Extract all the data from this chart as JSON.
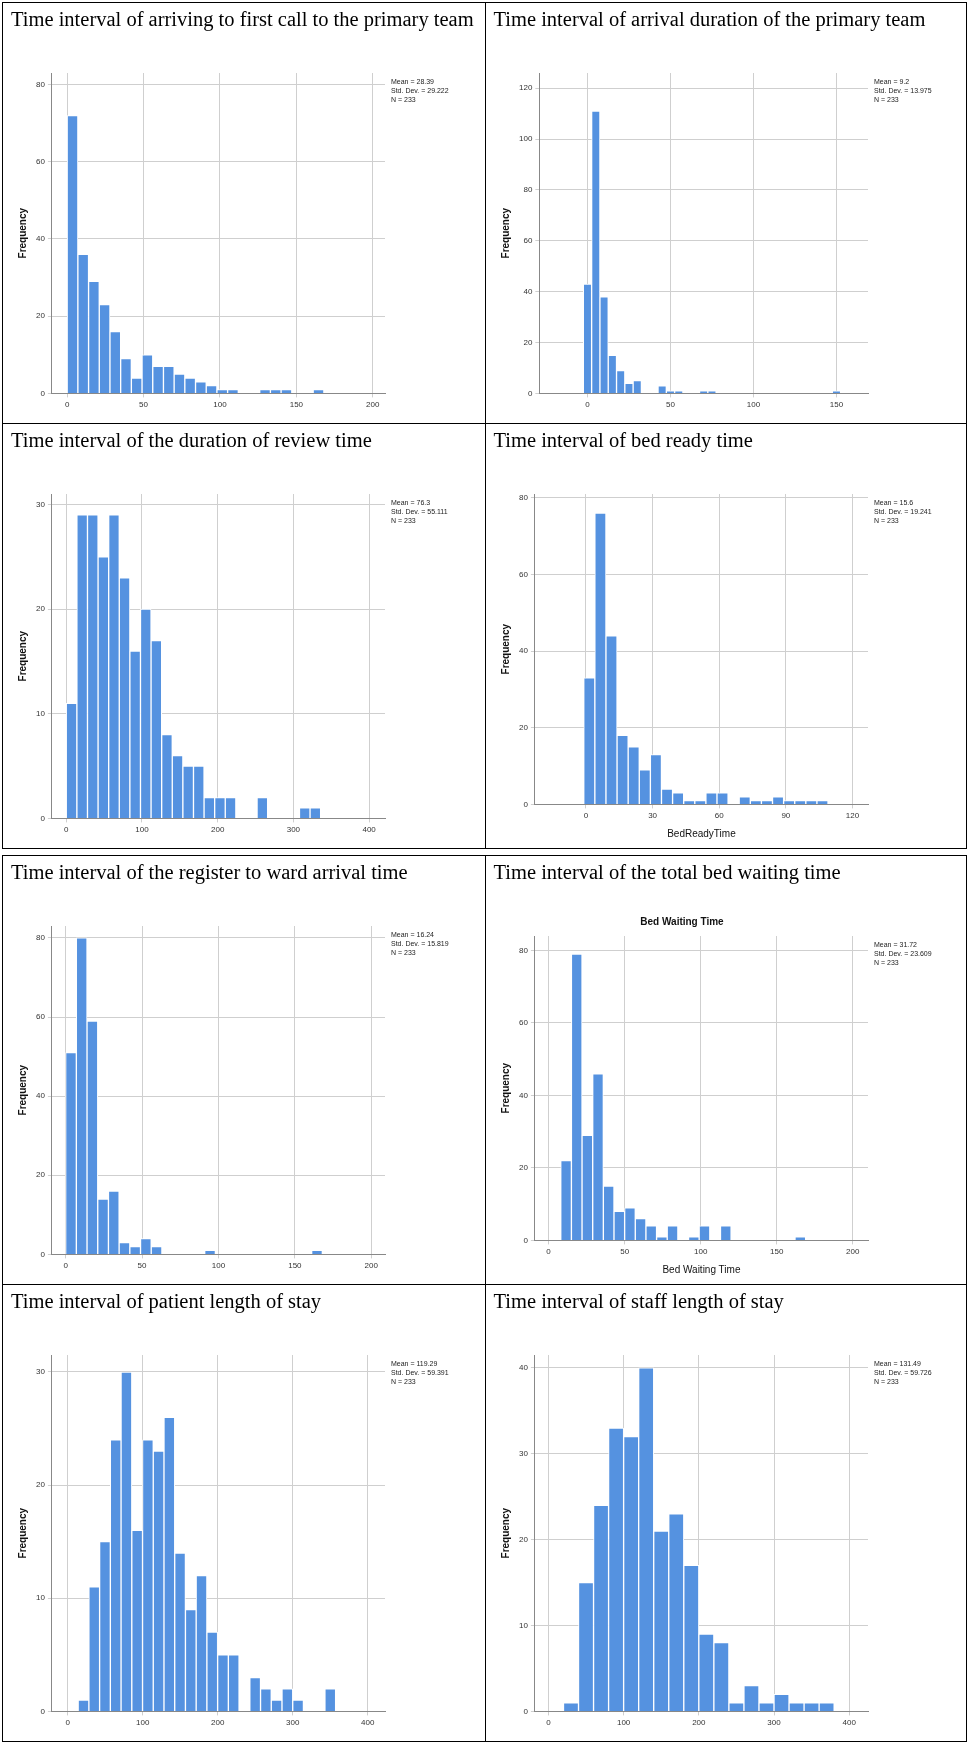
{
  "chart_data": [
    {
      "type": "histogram",
      "title": "Time interval of arriving to first call to the primary team",
      "ylabel": "Frequency",
      "color": "#5592e0",
      "grid": true,
      "bins": [
        0,
        7,
        14,
        21,
        28,
        35,
        42,
        49,
        56,
        63,
        70,
        77,
        84,
        91,
        98,
        105,
        112,
        119,
        126,
        133,
        140,
        147,
        154,
        161,
        168,
        175
      ],
      "values": [
        72,
        36,
        29,
        23,
        16,
        9,
        4,
        10,
        7,
        7,
        5,
        4,
        3,
        2,
        1,
        1,
        0,
        0,
        1,
        1,
        1,
        0,
        0,
        1,
        0
      ],
      "xlim": [
        -10,
        208
      ],
      "xticks": [
        0,
        50,
        100,
        150,
        200
      ],
      "ylim": [
        0,
        83
      ],
      "yticks": [
        0,
        20,
        40,
        60,
        80
      ],
      "annotations": [
        "Mean = 28.39",
        "Std. Dev. = 29.222",
        "N = 233"
      ]
    },
    {
      "type": "histogram",
      "title": "Time interval of arrival duration of the primary team",
      "ylabel": "Frequency",
      "color": "#5592e0",
      "grid": true,
      "bins": [
        -2.5,
        2.5,
        7.5,
        12.5,
        17.5,
        22.5,
        27.5,
        32.5,
        37.5,
        42.5,
        47.5,
        52.5,
        57.5,
        62.5,
        67.5,
        72.5,
        77.5,
        82.5,
        87.5,
        92.5,
        97.5,
        102.5,
        107.5,
        112.5,
        117.5,
        122.5,
        127.5,
        132.5,
        137.5,
        142.5,
        147.5,
        152.5
      ],
      "values": [
        43,
        111,
        38,
        15,
        9,
        4,
        5,
        0,
        0,
        3,
        1,
        1,
        0,
        0,
        1,
        1,
        0,
        0,
        0,
        0,
        0,
        0,
        0,
        0,
        0,
        0,
        0,
        0,
        0,
        0,
        1
      ],
      "xlim": [
        -29,
        169
      ],
      "xticks": [
        0,
        50,
        100,
        150
      ],
      "ylim": [
        0,
        126
      ],
      "yticks": [
        0,
        20,
        40,
        60,
        80,
        100,
        120
      ],
      "annotations": [
        "Mean = 9.2",
        "Std. Dev. = 13.975",
        "N = 233"
      ]
    },
    {
      "type": "histogram",
      "title": "Time interval of the duration of review time",
      "ylabel": "Frequency",
      "color": "#5592e0",
      "grid": true,
      "bins": [
        0,
        14,
        28,
        42,
        56,
        70,
        84,
        98,
        112,
        126,
        140,
        154,
        168,
        182,
        196,
        210,
        224,
        238,
        252,
        266,
        280,
        294,
        308,
        322,
        336
      ],
      "values": [
        11,
        29,
        29,
        25,
        29,
        23,
        16,
        20,
        17,
        8,
        6,
        5,
        5,
        2,
        2,
        2,
        0,
        0,
        2,
        0,
        0,
        0,
        1,
        1
      ],
      "xlim": [
        -19,
        421
      ],
      "xticks": [
        0,
        100,
        200,
        300,
        400
      ],
      "ylim": [
        0,
        31
      ],
      "yticks": [
        0,
        10,
        20,
        30
      ],
      "annotations": [
        "Mean = 76.3",
        "Std. Dev. = 55.111",
        "N = 233"
      ]
    },
    {
      "type": "histogram",
      "title": "Time interval of bed ready time",
      "xlabel": "BedReadyTime",
      "ylabel": "Frequency",
      "color": "#5592e0",
      "grid": true,
      "bins": [
        -1,
        4,
        9,
        14,
        19,
        24,
        29,
        34,
        39,
        44,
        49,
        54,
        59,
        64,
        69,
        74,
        79,
        84,
        89,
        94,
        99,
        104,
        109
      ],
      "values": [
        33,
        76,
        44,
        18,
        15,
        9,
        13,
        4,
        3,
        1,
        1,
        3,
        3,
        0,
        2,
        1,
        1,
        2,
        1,
        1,
        1,
        1
      ],
      "xlim": [
        -23,
        127
      ],
      "xticks": [
        0,
        30,
        60,
        90,
        120
      ],
      "ylim": [
        0,
        81
      ],
      "yticks": [
        0,
        20,
        40,
        60,
        80
      ],
      "annotations": [
        "Mean = 15.6",
        "Std. Dev. = 19.241",
        "N = 233"
      ]
    },
    {
      "type": "histogram",
      "title": "Time interval of the register to ward arrival time",
      "ylabel": "Frequency",
      "color": "#5592e0",
      "grid": true,
      "bins": [
        0,
        7,
        14,
        21,
        28,
        35,
        42,
        49,
        56,
        63,
        70,
        77,
        84,
        91,
        98,
        105,
        112,
        119,
        126,
        133,
        140,
        147,
        154,
        161,
        168
      ],
      "values": [
        51,
        80,
        59,
        14,
        16,
        3,
        2,
        4,
        2,
        0,
        0,
        0,
        0,
        1,
        0,
        0,
        0,
        0,
        0,
        0,
        0,
        0,
        0,
        1
      ],
      "xlim": [
        -9,
        209
      ],
      "xticks": [
        0,
        50,
        100,
        150,
        200
      ],
      "ylim": [
        0,
        83
      ],
      "yticks": [
        0,
        20,
        40,
        60,
        80
      ],
      "annotations": [
        "Mean = 16.24",
        "Std. Dev. = 15.819",
        "N = 233"
      ]
    },
    {
      "type": "histogram",
      "title": "Time interval of the total bed waiting time",
      "subtitle": "Bed Waiting Time",
      "xlabel": "Bed Waiting Time",
      "ylabel": "Frequency",
      "color": "#5592e0",
      "grid": true,
      "bins": [
        8,
        15,
        22,
        29,
        36,
        43,
        50,
        57,
        64,
        71,
        78,
        85,
        92,
        99,
        106,
        113,
        120,
        127,
        134,
        141,
        148,
        155,
        162,
        169
      ],
      "values": [
        22,
        79,
        29,
        46,
        15,
        8,
        9,
        6,
        4,
        1,
        4,
        0,
        1,
        4,
        0,
        4,
        0,
        0,
        0,
        0,
        0,
        0,
        1
      ],
      "xlim": [
        -9,
        210
      ],
      "xticks": [
        0,
        50,
        100,
        150,
        200
      ],
      "ylim": [
        0,
        84
      ],
      "yticks": [
        0,
        20,
        40,
        60,
        80
      ],
      "annotations": [
        "Mean = 31.72",
        "Std. Dev. = 23.609",
        "N = 233"
      ]
    },
    {
      "type": "histogram",
      "title": "Time interval of patient length of stay",
      "ylabel": "Frequency",
      "color": "#5592e0",
      "grid": true,
      "bins": [
        14,
        28.3,
        42.6,
        56.9,
        71.2,
        85.5,
        99.8,
        114.1,
        128.4,
        142.7,
        157,
        171.3,
        185.6,
        199.9,
        214.2,
        228.5,
        242.8,
        257.1,
        271.4,
        285.7,
        300,
        314.3,
        328.6,
        342.9,
        357.2
      ],
      "values": [
        1,
        11,
        15,
        24,
        30,
        16,
        24,
        23,
        26,
        14,
        9,
        12,
        7,
        5,
        5,
        0,
        3,
        2,
        1,
        2,
        1,
        0,
        0,
        2
      ],
      "xlim": [
        -21,
        423
      ],
      "xticks": [
        0,
        100,
        200,
        300,
        400
      ],
      "ylim": [
        0,
        31.5
      ],
      "yticks": [
        0,
        10,
        20,
        30
      ],
      "annotations": [
        "Mean = 119.29",
        "Std. Dev. = 59.391",
        "N = 233"
      ]
    },
    {
      "type": "histogram",
      "title": "Time interval of staff length of stay",
      "ylabel": "Frequency",
      "color": "#5592e0",
      "grid": true,
      "bins": [
        20,
        40,
        60,
        80,
        100,
        120,
        140,
        160,
        180,
        200,
        220,
        240,
        260,
        280,
        300,
        320,
        340,
        360,
        380
      ],
      "values": [
        1,
        15,
        24,
        33,
        32,
        40,
        21,
        23,
        17,
        9,
        8,
        1,
        3,
        1,
        2,
        1,
        1,
        1
      ],
      "xlim": [
        -18,
        425
      ],
      "xticks": [
        0,
        100,
        200,
        300,
        400
      ],
      "ylim": [
        0,
        41.5
      ],
      "yticks": [
        0,
        10,
        20,
        30,
        40
      ],
      "annotations": [
        "Mean = 131.49",
        "Std. Dev. = 59.726",
        "N = 233"
      ]
    }
  ]
}
